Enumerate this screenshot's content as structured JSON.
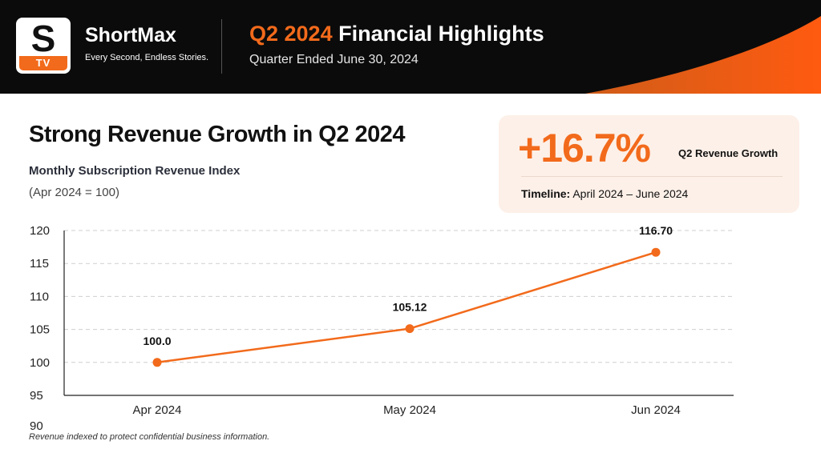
{
  "header": {
    "logo_letter": "S",
    "logo_badge": "TV",
    "brand_name": "ShortMax",
    "tagline": "Every Second, Endless Stories.",
    "title_accent": "Q2 2024",
    "title_rest": " Financial Highlights",
    "subtitle": "Quarter Ended June 30, 2024"
  },
  "main_title": "Strong Revenue Growth in Q2 2024",
  "kpi": {
    "value": "+16.7%",
    "label": "Q2 Revenue Growth",
    "timeline_label": "Timeline:",
    "timeline_value": " April 2024 – June 2024"
  },
  "footnote": "Revenue indexed to protect confidential business information.",
  "colors": {
    "accent": "#f26a1b",
    "header_bg": "#0b0b0b",
    "card_bg": "#fdf0e8"
  },
  "chart_data": {
    "type": "line",
    "title": "Monthly Subscription Revenue Index",
    "subtitle": "(Apr 2024 = 100)",
    "categories": [
      "Apr 2024",
      "May 2024",
      "Jun 2024"
    ],
    "values": [
      100.0,
      105.12,
      116.7
    ],
    "data_labels": [
      "100.0",
      "105.12",
      "116.70"
    ],
    "yticks": [
      "120",
      "115",
      "110",
      "105",
      "100",
      "95",
      "90"
    ],
    "ylim": [
      95,
      120
    ],
    "grid": "horizontal dashed",
    "line_color": "#f26a1b"
  }
}
